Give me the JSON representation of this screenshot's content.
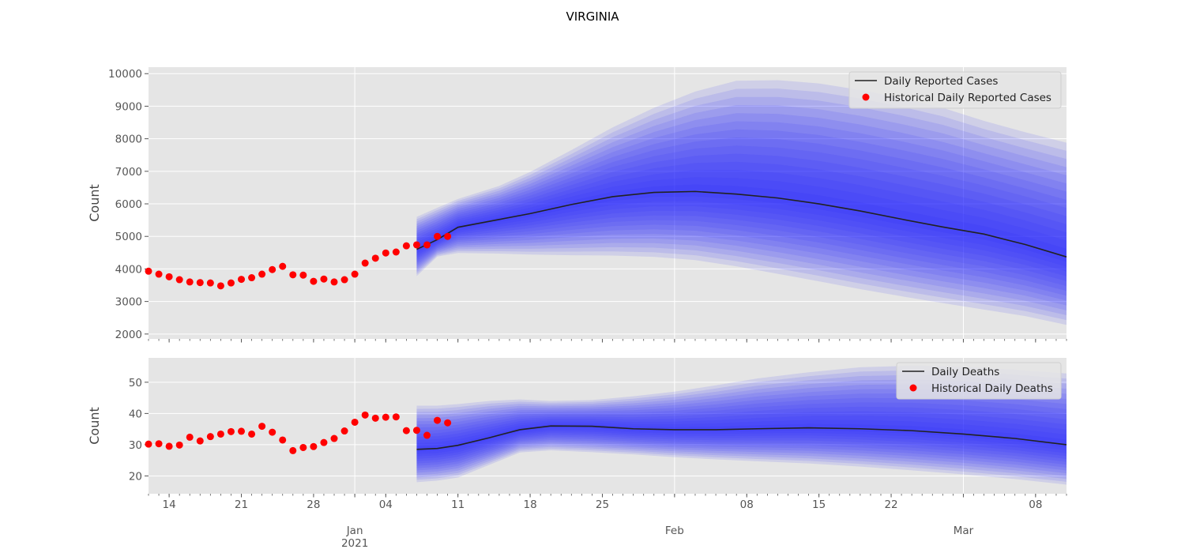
{
  "figure_title": "VIRGINIA",
  "colors": {
    "panel_bg": "#e5e5e5",
    "grid": "#ffffff",
    "band": "#2222ff",
    "median": "#222222",
    "points": "#ff0000",
    "tick_text": "#555555",
    "label_text": "#444444"
  },
  "x_axis": {
    "day_ticks": [
      {
        "date": "2020-12-14",
        "label": "14"
      },
      {
        "date": "2020-12-21",
        "label": "21"
      },
      {
        "date": "2020-12-28",
        "label": "28"
      },
      {
        "date": "2021-01-04",
        "label": "04"
      },
      {
        "date": "2021-01-11",
        "label": "11"
      },
      {
        "date": "2021-01-18",
        "label": "18"
      },
      {
        "date": "2021-01-25",
        "label": "25"
      },
      {
        "date": "2021-02-08",
        "label": "08"
      },
      {
        "date": "2021-02-15",
        "label": "15"
      },
      {
        "date": "2021-02-22",
        "label": "22"
      },
      {
        "date": "2021-03-08",
        "label": "08"
      }
    ],
    "month_ticks": [
      {
        "date": "2021-01-01",
        "label": "Jan",
        "year": "2021"
      },
      {
        "date": "2021-02-01",
        "label": "Feb"
      },
      {
        "date": "2021-03-01",
        "label": "Mar"
      }
    ],
    "range": [
      "2020-12-12",
      "2021-03-11"
    ]
  },
  "chart_data": [
    {
      "type": "line",
      "ylabel": "Count",
      "ylim": [
        1850,
        10200
      ],
      "yticks": [
        2000,
        3000,
        4000,
        5000,
        6000,
        7000,
        8000,
        9000,
        10000
      ],
      "grid": true,
      "legend": {
        "position": "top-right",
        "entries": [
          "Daily Reported Cases",
          "Historical Daily Reported Cases"
        ]
      },
      "historical": {
        "name": "Historical Daily Reported Cases",
        "start": "2020-12-12",
        "values": [
          3930,
          3840,
          3760,
          3670,
          3600,
          3580,
          3570,
          3480,
          3570,
          3680,
          3730,
          3840,
          3980,
          4080,
          3820,
          3810,
          3620,
          3690,
          3600,
          3670,
          3840,
          4180,
          4330,
          4490,
          4520,
          4710,
          4740,
          4740,
          5000,
          5000
        ]
      },
      "forecast": {
        "name": "Daily Reported Cases",
        "x": [
          "2021-01-07",
          "2021-01-09",
          "2021-01-11",
          "2021-01-15",
          "2021-01-18",
          "2021-01-22",
          "2021-01-26",
          "2021-01-30",
          "2021-02-03",
          "2021-02-07",
          "2021-02-11",
          "2021-02-15",
          "2021-02-19",
          "2021-02-23",
          "2021-02-27",
          "2021-03-03",
          "2021-03-07",
          "2021-03-11"
        ],
        "median": [
          4600,
          4900,
          5280,
          5520,
          5700,
          5980,
          6220,
          6350,
          6380,
          6300,
          6180,
          6000,
          5780,
          5530,
          5290,
          5070,
          4750,
          4370
        ],
        "outer_lower": [
          3780,
          4380,
          4490,
          4470,
          4440,
          4420,
          4410,
          4370,
          4270,
          4080,
          3850,
          3620,
          3380,
          3160,
          2950,
          2750,
          2550,
          2280
        ],
        "outer_upper": [
          5600,
          5880,
          6150,
          6550,
          6980,
          7650,
          8350,
          8950,
          9450,
          9780,
          9800,
          9700,
          9500,
          9250,
          8950,
          8550,
          8200,
          7880
        ]
      }
    },
    {
      "type": "line",
      "ylabel": "Count",
      "ylim": [
        14.3,
        57.8
      ],
      "yticks": [
        20,
        30,
        40,
        50
      ],
      "grid": true,
      "legend": {
        "position": "top-right",
        "entries": [
          "Daily Deaths",
          "Historical Daily Deaths"
        ]
      },
      "historical": {
        "name": "Historical Daily Deaths",
        "start": "2020-12-12",
        "values": [
          30.2,
          30.3,
          29.5,
          29.9,
          32.4,
          31.2,
          32.6,
          33.4,
          34.2,
          34.3,
          33.4,
          35.9,
          34.0,
          31.5,
          28.1,
          29.1,
          29.4,
          30.7,
          32.0,
          34.4,
          37.2,
          39.5,
          38.5,
          38.8,
          38.9,
          34.5,
          34.6,
          33.0,
          37.8,
          37.0
        ]
      },
      "forecast": {
        "name": "Daily Deaths",
        "x": [
          "2021-01-07",
          "2021-01-09",
          "2021-01-11",
          "2021-01-14",
          "2021-01-17",
          "2021-01-20",
          "2021-01-24",
          "2021-01-28",
          "2021-02-01",
          "2021-02-05",
          "2021-02-09",
          "2021-02-14",
          "2021-02-19",
          "2021-02-24",
          "2021-03-01",
          "2021-03-06",
          "2021-03-11"
        ],
        "median": [
          28.5,
          28.8,
          29.8,
          32.2,
          34.8,
          36.0,
          35.9,
          35.1,
          34.8,
          34.8,
          35.1,
          35.4,
          35.1,
          34.5,
          33.4,
          32.0,
          30.0
        ],
        "outer_lower": [
          18.0,
          18.5,
          19.5,
          23.5,
          27.5,
          28.2,
          27.6,
          26.9,
          26.0,
          25.3,
          24.7,
          24.0,
          23.0,
          21.8,
          20.5,
          19.0,
          17.2
        ],
        "outer_upper": [
          42.5,
          42.5,
          43.0,
          44.0,
          44.5,
          44.0,
          44.3,
          45.5,
          47.0,
          49.0,
          51.2,
          53.2,
          54.8,
          55.3,
          55.0,
          54.0,
          52.8
        ]
      }
    }
  ]
}
